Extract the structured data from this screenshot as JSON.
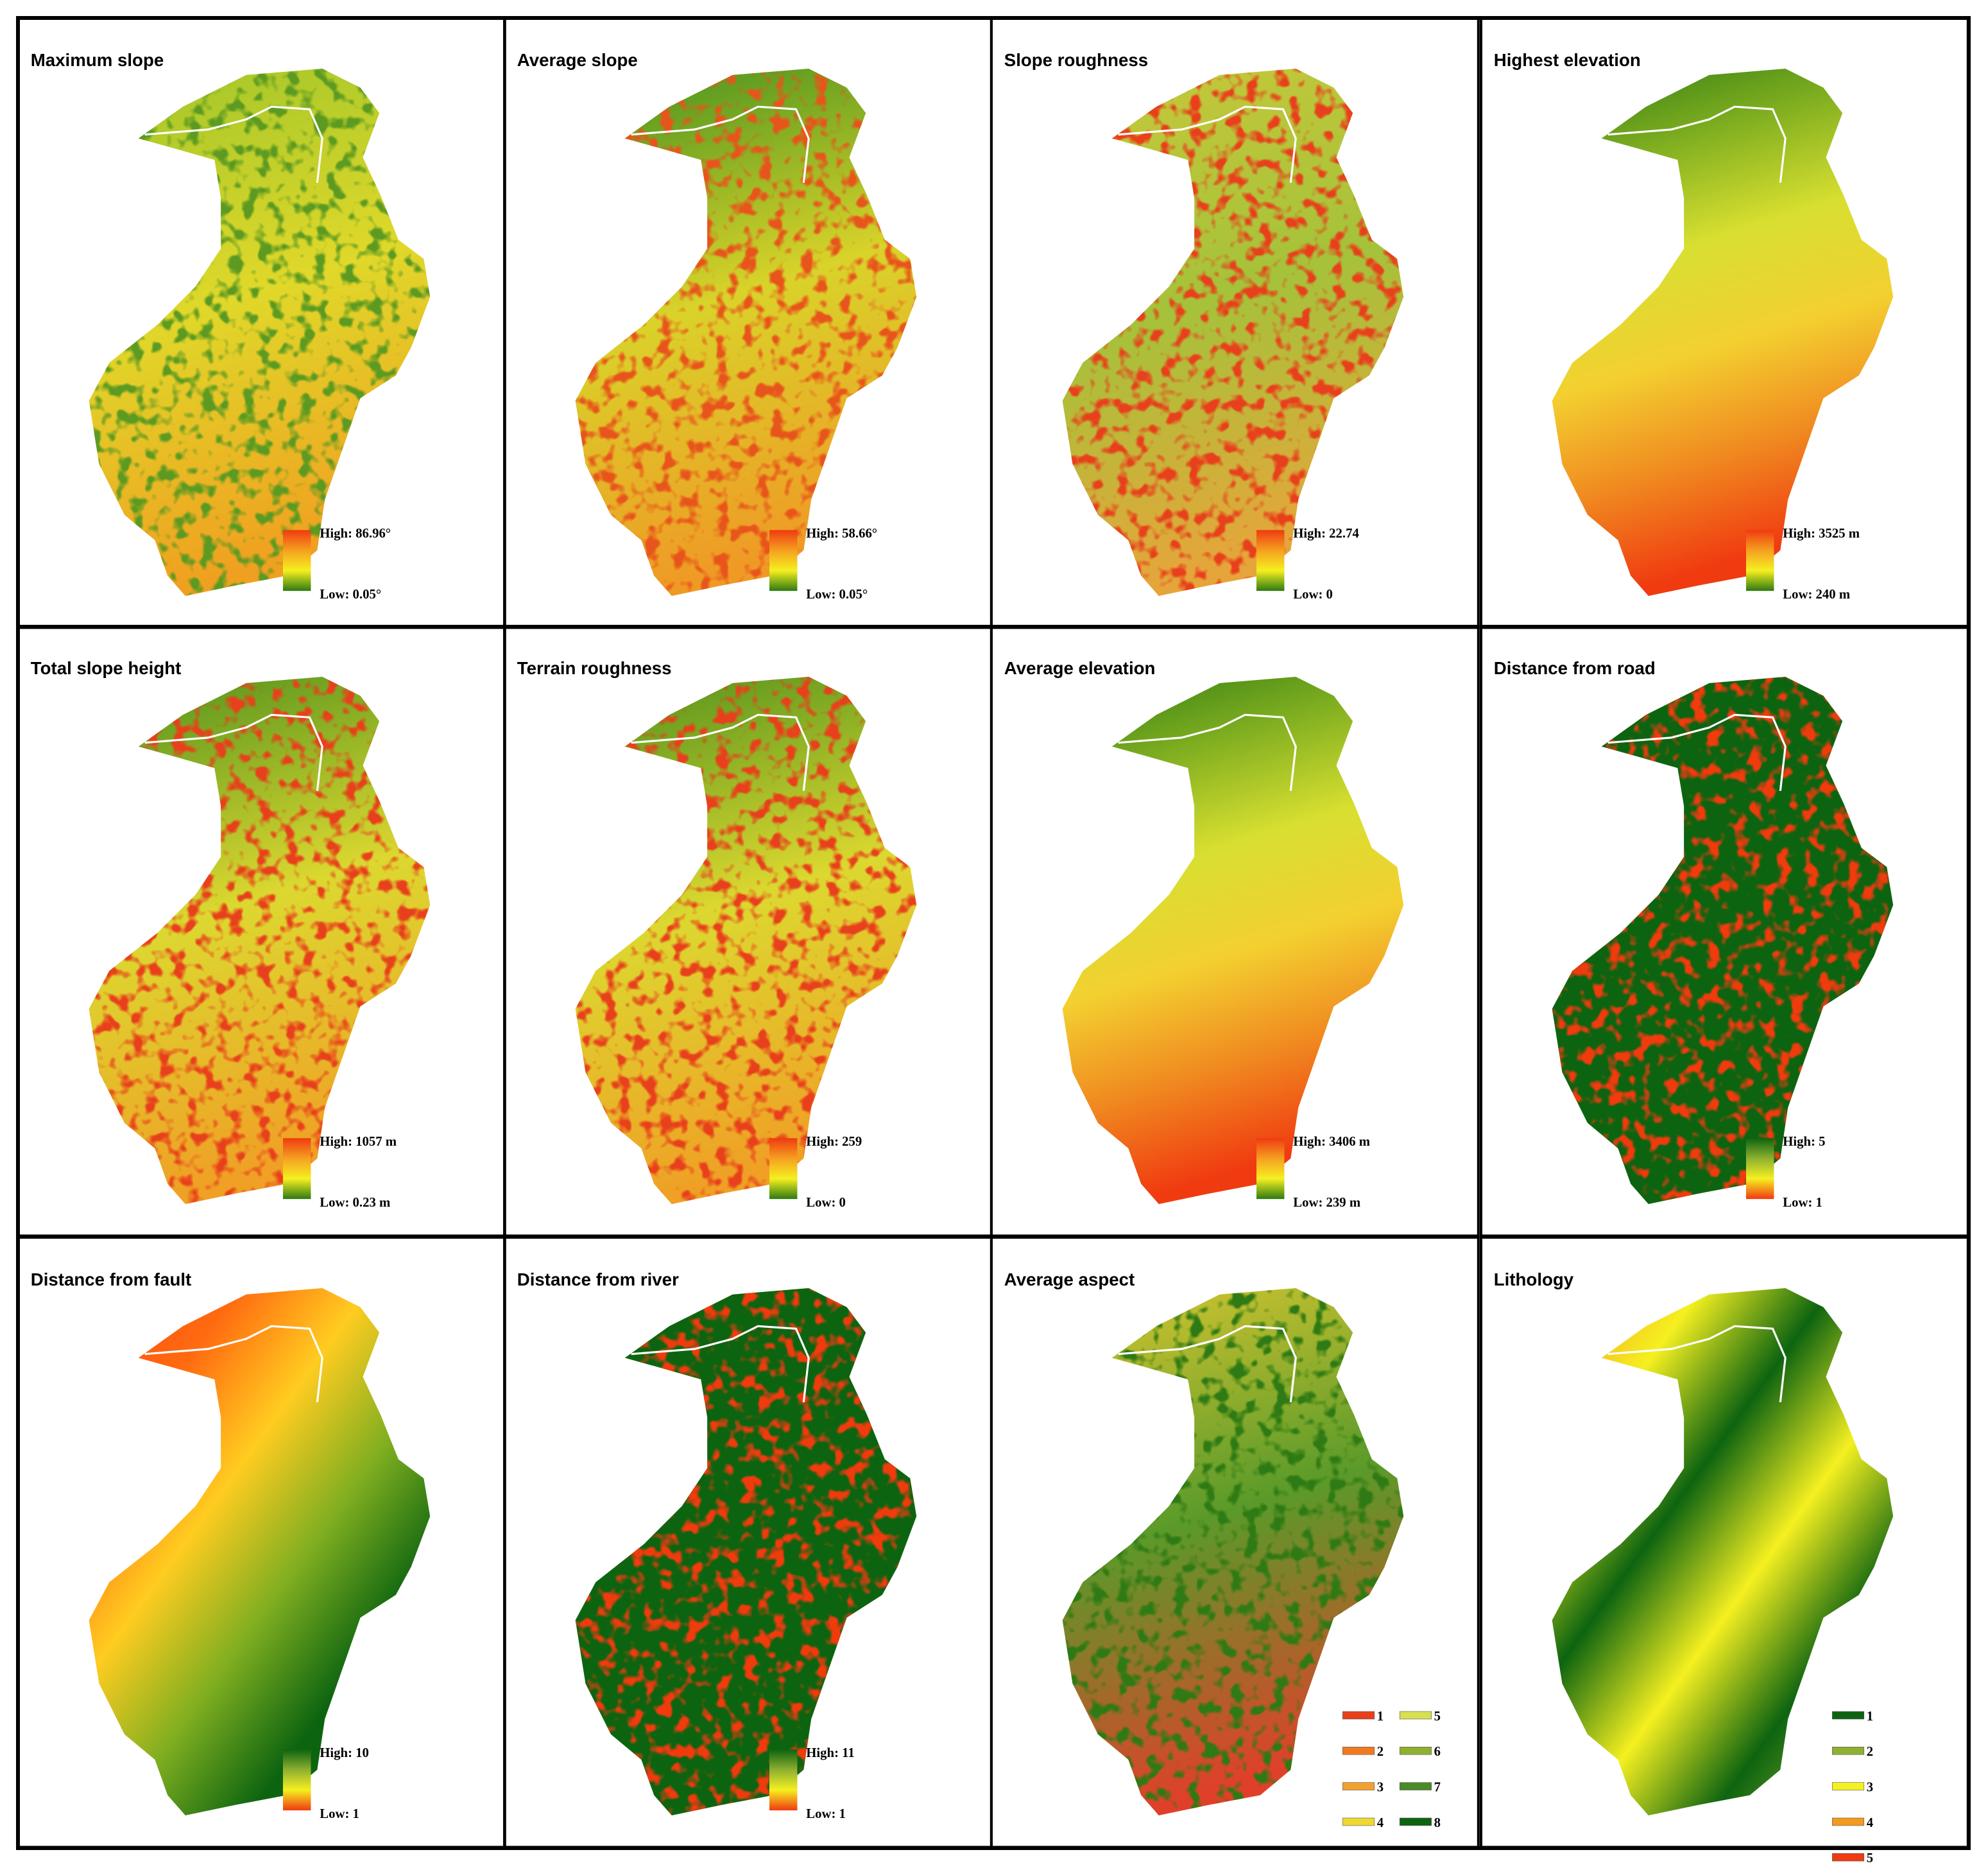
{
  "panels": [
    {
      "title": "Maximum slope",
      "legend": {
        "high": "High: 86.96°",
        "low": "Low: 0.05°"
      }
    },
    {
      "title": "Average slope",
      "legend": {
        "high": "High: 58.66°",
        "low": "Low: 0.05°"
      }
    },
    {
      "title": "Slope roughness",
      "legend": {
        "high": "High: 22.74",
        "low": "Low: 0"
      }
    },
    {
      "title": "Highest elevation",
      "legend": {
        "high": "High: 3525 m",
        "low": "Low: 240 m"
      }
    },
    {
      "title": "Total slope height",
      "legend": {
        "high": "High: 1057 m",
        "low": "Low: 0.23 m"
      }
    },
    {
      "title": "Terrain roughness",
      "legend": {
        "high": "High: 259",
        "low": "Low: 0"
      }
    },
    {
      "title": "Average elevation",
      "legend": {
        "high": "High: 3406 m",
        "low": "Low: 239 m"
      }
    },
    {
      "title": "Distance from road",
      "legend": {
        "high": "High: 5",
        "low": "Low: 1"
      }
    },
    {
      "title": "Distance from fault",
      "legend": {
        "high": "High: 10",
        "low": "Low: 1"
      }
    },
    {
      "title": "Distance from river",
      "legend": {
        "high": "High: 11",
        "low": "Low: 1"
      }
    },
    {
      "title": "Average aspect",
      "legend": {
        "classes": [
          "1",
          "2",
          "3",
          "4",
          "5",
          "6",
          "7",
          "8"
        ]
      }
    },
    {
      "title": "Lithology",
      "legend": {
        "classes": [
          "1",
          "2",
          "3",
          "4",
          "5"
        ]
      }
    }
  ]
}
